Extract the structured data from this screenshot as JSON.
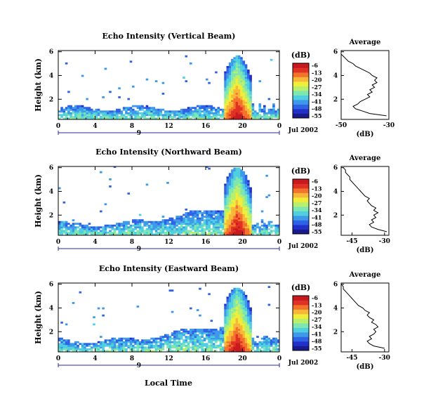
{
  "figure": {
    "xlabel_bottom": "Local Time",
    "date_label": "Jul 2002",
    "day_label": "9"
  },
  "colorbar": {
    "unit": "(dB)",
    "ticks": [
      "-6",
      "-13",
      "-20",
      "-27",
      "-34",
      "-41",
      "-48",
      "-55"
    ],
    "colors": [
      "#1a1a8c",
      "#2030c8",
      "#2f63e6",
      "#3e9ae8",
      "#4fcfe0",
      "#7ee6b0",
      "#b9ef6a",
      "#f0ee3a",
      "#f9b73a",
      "#f4732c",
      "#e03224",
      "#c81a1e"
    ]
  },
  "chart_data": [
    {
      "type": "heatmap",
      "title": "Echo Intensity (Vertical Beam)",
      "ylabel": "Height (km)",
      "xlabel": "",
      "x_ticks": [
        "0",
        "4",
        "8",
        "12",
        "16",
        "20",
        "0"
      ],
      "y_ticks": [
        "2",
        "4",
        "6"
      ],
      "xlim": [
        0,
        24
      ],
      "ylim": [
        0.3,
        6.1
      ],
      "value_range_db": [
        -55,
        -6
      ],
      "precipitation_event": {
        "start_hour": 17.8,
        "end_hour": 20.8,
        "peak_top_km": 5.6
      },
      "avg_profile": {
        "title": "Average",
        "xlabel": "(dB)",
        "x_ticks": [
          "-50",
          "-30"
        ],
        "y_ticks": [
          "2",
          "4",
          "6"
        ],
        "xlim": [
          -50,
          -30
        ],
        "heights_km": [
          0.6,
          0.8,
          1.0,
          1.2,
          1.4,
          1.6,
          1.8,
          2.0,
          2.2,
          2.4,
          2.6,
          2.8,
          3.0,
          3.2,
          3.4,
          3.6,
          3.8,
          4.0,
          4.2,
          4.4,
          4.6,
          4.8,
          5.0,
          5.2,
          5.4,
          5.6,
          5.8,
          6.0
        ],
        "values_db": [
          -31,
          -38,
          -41,
          -44,
          -45,
          -43,
          -42,
          -40,
          -38,
          -39,
          -37,
          -38,
          -36,
          -37,
          -35,
          -36,
          -35,
          -37,
          -38,
          -40,
          -42,
          -44,
          -45,
          -47,
          -48,
          -49,
          -50,
          -50
        ]
      }
    },
    {
      "type": "heatmap",
      "title": "Echo Intensity (Northward Beam)",
      "ylabel": "Height (km)",
      "xlabel": "",
      "x_ticks": [
        "0",
        "4",
        "8",
        "12",
        "16",
        "20",
        "0"
      ],
      "y_ticks": [
        "2",
        "4",
        "6"
      ],
      "xlim": [
        0,
        24
      ],
      "ylim": [
        0.3,
        6.1
      ],
      "value_range_db": [
        -55,
        -6
      ],
      "precipitation_event": {
        "start_hour": 17.8,
        "end_hour": 20.8,
        "peak_top_km": 6.0
      },
      "avg_profile": {
        "title": "Average",
        "xlabel": "(dB)",
        "x_ticks": [
          "-45",
          "-30"
        ],
        "y_ticks": [
          "2",
          "4",
          "6"
        ],
        "xlim": [
          -50,
          -28
        ],
        "heights_km": [
          0.6,
          0.8,
          1.0,
          1.2,
          1.4,
          1.6,
          1.8,
          2.0,
          2.2,
          2.4,
          2.6,
          2.8,
          3.0,
          3.2,
          3.4,
          3.6,
          3.8,
          4.0,
          4.2,
          4.4,
          4.6,
          4.8,
          5.0,
          5.2,
          5.4,
          5.6,
          5.8,
          6.0
        ],
        "values_db": [
          -29,
          -33,
          -36,
          -37,
          -35,
          -36,
          -34,
          -35,
          -33,
          -35,
          -34,
          -36,
          -37,
          -38,
          -37,
          -39,
          -40,
          -41,
          -42,
          -43,
          -44,
          -45,
          -46,
          -46,
          -47,
          -48,
          -48,
          -49
        ]
      }
    },
    {
      "type": "heatmap",
      "title": "Echo Intensity (Eastward Beam)",
      "ylabel": "Height (km)",
      "xlabel": "Local Time",
      "x_ticks": [
        "0",
        "4",
        "8",
        "12",
        "16",
        "20",
        "0"
      ],
      "y_ticks": [
        "2",
        "4",
        "6"
      ],
      "xlim": [
        0,
        24
      ],
      "ylim": [
        0.3,
        6.1
      ],
      "value_range_db": [
        -55,
        -6
      ],
      "precipitation_event": {
        "start_hour": 17.8,
        "end_hour": 20.8,
        "peak_top_km": 5.7
      },
      "avg_profile": {
        "title": "Average",
        "xlabel": "(dB)",
        "x_ticks": [
          "-45",
          "-30"
        ],
        "y_ticks": [
          "2",
          "4",
          "6"
        ],
        "xlim": [
          -50,
          -28
        ],
        "heights_km": [
          0.6,
          0.8,
          1.0,
          1.2,
          1.4,
          1.6,
          1.8,
          2.0,
          2.2,
          2.4,
          2.6,
          2.8,
          3.0,
          3.2,
          3.4,
          3.6,
          3.8,
          4.0,
          4.2,
          4.4,
          4.6,
          4.8,
          5.0,
          5.2,
          5.4,
          5.6,
          5.8,
          6.0
        ],
        "values_db": [
          -30,
          -35,
          -37,
          -38,
          -36,
          -37,
          -35,
          -34,
          -35,
          -33,
          -34,
          -36,
          -35,
          -37,
          -38,
          -37,
          -39,
          -40,
          -42,
          -43,
          -44,
          -45,
          -46,
          -47,
          -48,
          -49,
          -49,
          -50
        ]
      }
    }
  ]
}
